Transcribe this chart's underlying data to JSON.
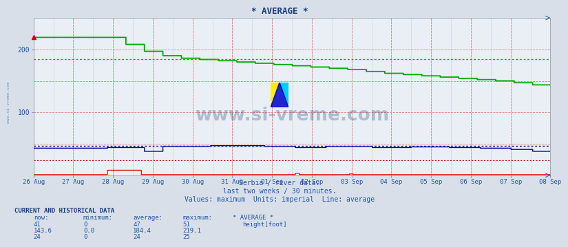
{
  "title": "* AVERAGE *",
  "bg_color": "#d8dfe8",
  "plot_bg_color": "#eaeff5",
  "grid_color_major": "#e08080",
  "grid_color_minor": "#c8d0d8",
  "xlabel_text": "Serbia / river data.",
  "subtitle1": "last two weeks / 30 minutes.",
  "subtitle2": "Values: maximum  Units: imperial  Line: average",
  "watermark": "www.si-vreme.com",
  "watermark_color": "#1a3a6a",
  "left_label": "www.si-vreme.com",
  "ylim": [
    0,
    250
  ],
  "yticks": [
    100,
    200
  ],
  "date_labels": [
    "26 Aug",
    "27 Aug",
    "28 Aug",
    "29 Aug",
    "30 Aug",
    "31 Aug",
    "01 Sep",
    "02 Sep",
    "03 Sep",
    "04 Sep",
    "05 Sep",
    "06 Sep",
    "07 Sep",
    "08 Sep"
  ],
  "green_line_color": "#00aa00",
  "blue_line_color": "#000099",
  "red_line_color": "#cc0000",
  "green_avg_color": "#00bb00",
  "blue_avg_color": "#0000aa",
  "red_avg_color": "#cc0000",
  "title_color": "#1a3a7a",
  "axis_label_color": "#2255aa",
  "table_header_color": "#1a3a7a",
  "table_value_color": "#2255aa",
  "legend_square_color": "#000080",
  "now_val": "41",
  "min_val": "0",
  "avg_val": "47",
  "max_val": "51",
  "now_val2": "143.6",
  "min_val2": "0.0",
  "avg_val2": "184.4",
  "max_val2": "219.1",
  "now_val3": "24",
  "min_val3": "0",
  "avg_val3": "24",
  "max_val3": "25",
  "green_avg_level": 184.4,
  "blue_avg_level": 47.0,
  "red_avg_level": 24.0
}
